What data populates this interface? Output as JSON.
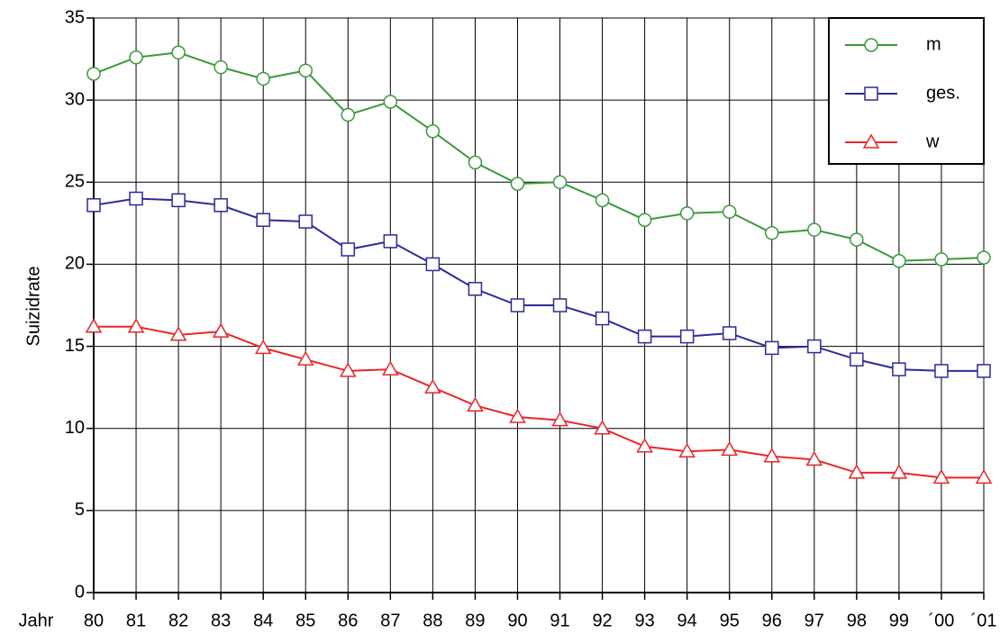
{
  "chart_data": {
    "type": "line",
    "xlabel": "Jahr",
    "ylabel": "Suizidrate",
    "categories": [
      "80",
      "81",
      "82",
      "83",
      "84",
      "85",
      "86",
      "87",
      "88",
      "89",
      "90",
      "91",
      "92",
      "93",
      "94",
      "95",
      "96",
      "97",
      "98",
      "99",
      "´00",
      "´01"
    ],
    "series": [
      {
        "name": "m",
        "color": "#3a9a3a",
        "marker": "circle",
        "values": [
          31.6,
          32.6,
          32.9,
          32.0,
          31.3,
          31.8,
          29.1,
          29.9,
          28.1,
          26.2,
          24.9,
          25.0,
          23.9,
          22.7,
          23.1,
          23.2,
          21.9,
          22.1,
          21.5,
          20.2,
          20.3,
          20.4
        ]
      },
      {
        "name": "ges.",
        "color": "#2b2b9a",
        "marker": "square",
        "values": [
          23.6,
          24.0,
          23.9,
          23.6,
          22.7,
          22.6,
          20.9,
          21.4,
          20.0,
          18.5,
          17.5,
          17.5,
          16.7,
          15.6,
          15.6,
          15.8,
          14.9,
          15.0,
          14.2,
          13.6,
          13.5,
          13.5
        ]
      },
      {
        "name": "w",
        "color": "#e8262a",
        "marker": "triangle",
        "values": [
          16.2,
          16.2,
          15.7,
          15.9,
          14.9,
          14.2,
          13.5,
          13.6,
          12.5,
          11.4,
          10.7,
          10.5,
          10.0,
          8.9,
          8.6,
          8.7,
          8.3,
          8.1,
          7.3,
          7.3,
          7.0,
          7.0
        ]
      }
    ],
    "ylim": [
      0,
      35
    ],
    "yticks": [
      0,
      5,
      10,
      15,
      20,
      25,
      30,
      35
    ],
    "grid": true,
    "legend": "upper right"
  }
}
